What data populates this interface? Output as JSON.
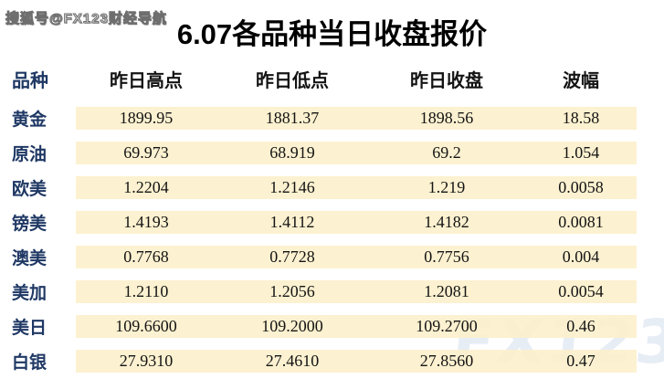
{
  "watermarks": {
    "top_left": "搜狐号@FX123财经导航",
    "bottom_right": "FX123"
  },
  "title": "6.07各品种当日收盘报价",
  "table": {
    "headers": {
      "name": "品种",
      "high": "昨日高点",
      "low": "昨日低点",
      "close": "昨日收盘",
      "range": "波幅"
    },
    "rows": [
      {
        "name": "黄金",
        "high": "1899.95",
        "low": "1881.37",
        "close": "1898.56",
        "range": "18.58"
      },
      {
        "name": "原油",
        "high": "69.973",
        "low": "68.919",
        "close": "69.2",
        "range": "1.054"
      },
      {
        "name": "欧美",
        "high": "1.2204",
        "low": "1.2146",
        "close": "1.219",
        "range": "0.0058"
      },
      {
        "name": "镑美",
        "high": "1.4193",
        "low": "1.4112",
        "close": "1.4182",
        "range": "0.0081"
      },
      {
        "name": "澳美",
        "high": "0.7768",
        "low": "0.7728",
        "close": "0.7756",
        "range": "0.004"
      },
      {
        "name": "美加",
        "high": "1.2110",
        "low": "1.2056",
        "close": "1.2081",
        "range": "0.0054"
      },
      {
        "name": "美日",
        "high": "109.6600",
        "low": "109.2000",
        "close": "109.2700",
        "range": "0.46"
      },
      {
        "name": "白银",
        "high": "27.9310",
        "low": "27.4610",
        "close": "27.8560",
        "range": "0.47"
      }
    ]
  },
  "colors": {
    "name_navy": "#1F3864",
    "cell_yellow": "#FCF0CB",
    "watermark_blue": "#E7EDF5",
    "header_black": "#141414"
  },
  "chart_data": {
    "type": "table",
    "title": "6.07各品种当日收盘报价",
    "columns": [
      "品种",
      "昨日高点",
      "昨日低点",
      "昨日收盘",
      "波幅"
    ],
    "rows": [
      [
        "黄金",
        1899.95,
        1881.37,
        1898.56,
        18.58
      ],
      [
        "原油",
        69.973,
        68.919,
        69.2,
        1.054
      ],
      [
        "欧美",
        1.2204,
        1.2146,
        1.219,
        0.0058
      ],
      [
        "镑美",
        1.4193,
        1.4112,
        1.4182,
        0.0081
      ],
      [
        "澳美",
        0.7768,
        0.7728,
        0.7756,
        0.004
      ],
      [
        "美加",
        1.211,
        1.2056,
        1.2081,
        0.0054
      ],
      [
        "美日",
        109.66,
        109.2,
        109.27,
        0.46
      ],
      [
        "白银",
        27.931,
        27.461,
        27.856,
        0.47
      ]
    ]
  }
}
